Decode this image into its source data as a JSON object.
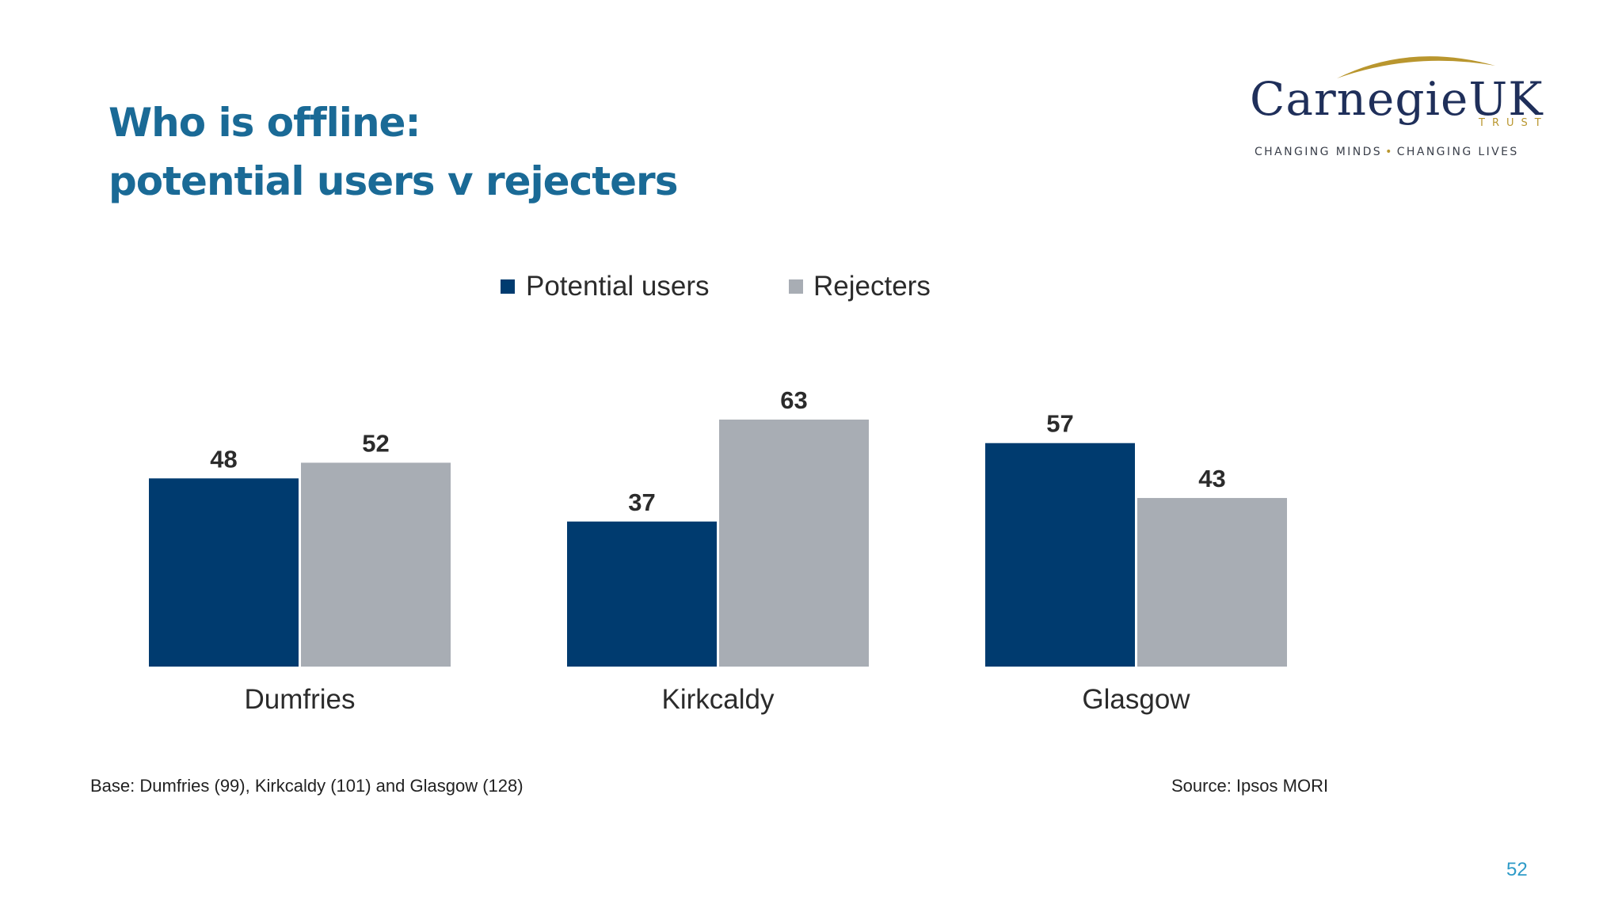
{
  "title": {
    "line1": "Who is offline:",
    "line2": "potential users v rejecters"
  },
  "logo": {
    "name": "CarnegieUK",
    "trust": "TRUST",
    "tagline_left": "CHANGING MINDS",
    "tagline_right": "CHANGING LIVES",
    "colors": {
      "name": "#1f2f5a",
      "accent": "#b9962e"
    }
  },
  "chart_data": {
    "type": "bar",
    "categories": [
      "Dumfries",
      "Kirkcaldy",
      "Glasgow"
    ],
    "series": [
      {
        "name": "Potential users",
        "values": [
          48,
          37,
          57
        ],
        "color": "#003b6f"
      },
      {
        "name": "Rejecters",
        "values": [
          52,
          63,
          43
        ],
        "color": "#a8adb4"
      }
    ],
    "title": "",
    "xlabel": "",
    "ylabel": "",
    "ylim": [
      0,
      63
    ],
    "grid": false,
    "legend": "top-center",
    "data_labels": true
  },
  "footer": {
    "base": "Base: Dumfries (99), Kirkcaldy (101) and Glasgow (128)",
    "source": "Source: Ipsos MORI",
    "page_number": "52"
  }
}
